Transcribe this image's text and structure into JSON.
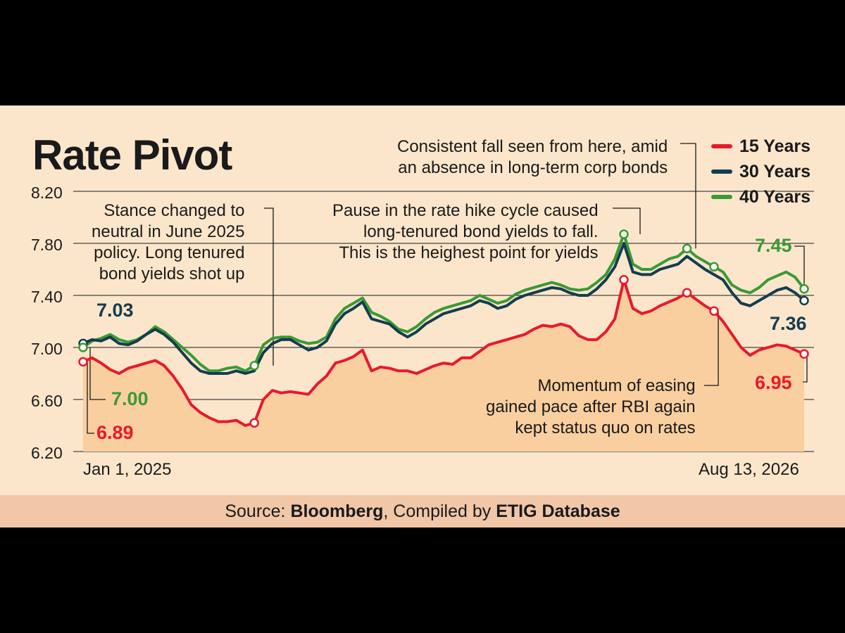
{
  "colors": {
    "background": "#fbe6cb",
    "y15": "#e8192c",
    "y30": "#143c50",
    "y40": "#3a9a34",
    "fill": "#f9cf9f",
    "source_bar": "#f1c7a8"
  },
  "title": "Rate Pivot",
  "legend": [
    "15 Years",
    "30 Years",
    "40 Years"
  ],
  "annotations": {
    "consistent_fall": [
      "Consistent fall seen from here, amid",
      "an absence in long-term corp bonds"
    ],
    "stance_changed": [
      "Stance changed to",
      "neutral in June 2025",
      "policy. Long tenured",
      "bond yields shot up"
    ],
    "pause": [
      "Pause in the rate hike cycle caused",
      "long-tenured bond yields to fall.",
      "This is the heighest point for yields"
    ],
    "momentum": [
      "Momentum of easing",
      "gained pace after RBI again",
      "kept status quo on rates"
    ]
  },
  "value_labels": {
    "start_30": "7.03",
    "start_40": "7.00",
    "start_15": "6.89",
    "end_40": "7.45",
    "end_30": "7.36",
    "end_15": "6.95"
  },
  "source": {
    "prefix": "Source: ",
    "bloomberg": "Bloomberg",
    "middle": ", Compiled by ",
    "etig": "ETIG Database"
  },
  "chart_data": {
    "type": "line",
    "title": "Rate Pivot",
    "y_ticks": [
      "8.20",
      "7.80",
      "7.40",
      "7.00",
      "6.60",
      "6.20"
    ],
    "ylim": [
      6.2,
      8.2
    ],
    "x_labels": [
      "Jan 1, 2025",
      "Aug 13, 2026"
    ],
    "legend_position": "top-right",
    "grid": true,
    "series": [
      {
        "name": "15 Years",
        "color": "#e8192c",
        "values": [
          6.89,
          6.92,
          6.88,
          6.83,
          6.8,
          6.84,
          6.86,
          6.88,
          6.9,
          6.86,
          6.78,
          6.68,
          6.56,
          6.5,
          6.46,
          6.43,
          6.43,
          6.44,
          6.4,
          6.42,
          6.6,
          6.67,
          6.65,
          6.66,
          6.65,
          6.64,
          6.72,
          6.78,
          6.88,
          6.9,
          6.93,
          6.98,
          6.82,
          6.85,
          6.84,
          6.82,
          6.82,
          6.8,
          6.83,
          6.86,
          6.88,
          6.87,
          6.92,
          6.92,
          6.97,
          7.02,
          7.04,
          7.06,
          7.08,
          7.1,
          7.14,
          7.17,
          7.16,
          7.18,
          7.16,
          7.09,
          7.06,
          7.06,
          7.12,
          7.22,
          7.52,
          7.3,
          7.26,
          7.28,
          7.32,
          7.35,
          7.38,
          7.42,
          7.37,
          7.32,
          7.28,
          7.2,
          7.1,
          7.0,
          6.94,
          6.98,
          7.0,
          7.02,
          7.01,
          6.98,
          6.95
        ]
      },
      {
        "name": "30 Years",
        "color": "#143c50",
        "values": [
          7.03,
          7.06,
          7.05,
          7.08,
          7.03,
          7.02,
          7.05,
          7.1,
          7.14,
          7.1,
          7.04,
          6.96,
          6.88,
          6.82,
          6.8,
          6.8,
          6.8,
          6.82,
          6.8,
          6.82,
          6.96,
          7.03,
          7.06,
          7.06,
          7.02,
          6.98,
          7.0,
          7.05,
          7.18,
          7.26,
          7.3,
          7.35,
          7.22,
          7.2,
          7.18,
          7.12,
          7.08,
          7.12,
          7.18,
          7.22,
          7.26,
          7.28,
          7.3,
          7.32,
          7.36,
          7.34,
          7.3,
          7.32,
          7.37,
          7.4,
          7.42,
          7.44,
          7.46,
          7.45,
          7.42,
          7.4,
          7.4,
          7.45,
          7.52,
          7.62,
          7.8,
          7.58,
          7.56,
          7.56,
          7.6,
          7.62,
          7.64,
          7.7,
          7.65,
          7.6,
          7.56,
          7.52,
          7.42,
          7.34,
          7.32,
          7.36,
          7.4,
          7.44,
          7.46,
          7.42,
          7.36
        ]
      },
      {
        "name": "40 Years",
        "color": "#3a9a34",
        "values": [
          7.0,
          7.05,
          7.07,
          7.1,
          7.06,
          7.04,
          7.06,
          7.1,
          7.16,
          7.12,
          7.06,
          7.0,
          6.94,
          6.87,
          6.82,
          6.82,
          6.84,
          6.85,
          6.82,
          6.86,
          7.02,
          7.07,
          7.08,
          7.08,
          7.05,
          7.03,
          7.04,
          7.08,
          7.22,
          7.3,
          7.34,
          7.38,
          7.27,
          7.24,
          7.2,
          7.14,
          7.12,
          7.16,
          7.22,
          7.27,
          7.3,
          7.32,
          7.34,
          7.36,
          7.4,
          7.37,
          7.34,
          7.36,
          7.41,
          7.44,
          7.46,
          7.48,
          7.5,
          7.48,
          7.45,
          7.44,
          7.45,
          7.5,
          7.56,
          7.68,
          7.87,
          7.64,
          7.6,
          7.6,
          7.64,
          7.68,
          7.7,
          7.76,
          7.7,
          7.66,
          7.62,
          7.58,
          7.48,
          7.44,
          7.42,
          7.46,
          7.52,
          7.55,
          7.58,
          7.54,
          7.45
        ]
      }
    ],
    "markers": [
      {
        "series": "15 Years",
        "indices": [
          0,
          19,
          60,
          67,
          70,
          80
        ]
      },
      {
        "series": "30 Years",
        "indices": [
          0,
          80
        ]
      },
      {
        "series": "40 Years",
        "indices": [
          0,
          19,
          60,
          67,
          70,
          80
        ]
      }
    ]
  }
}
